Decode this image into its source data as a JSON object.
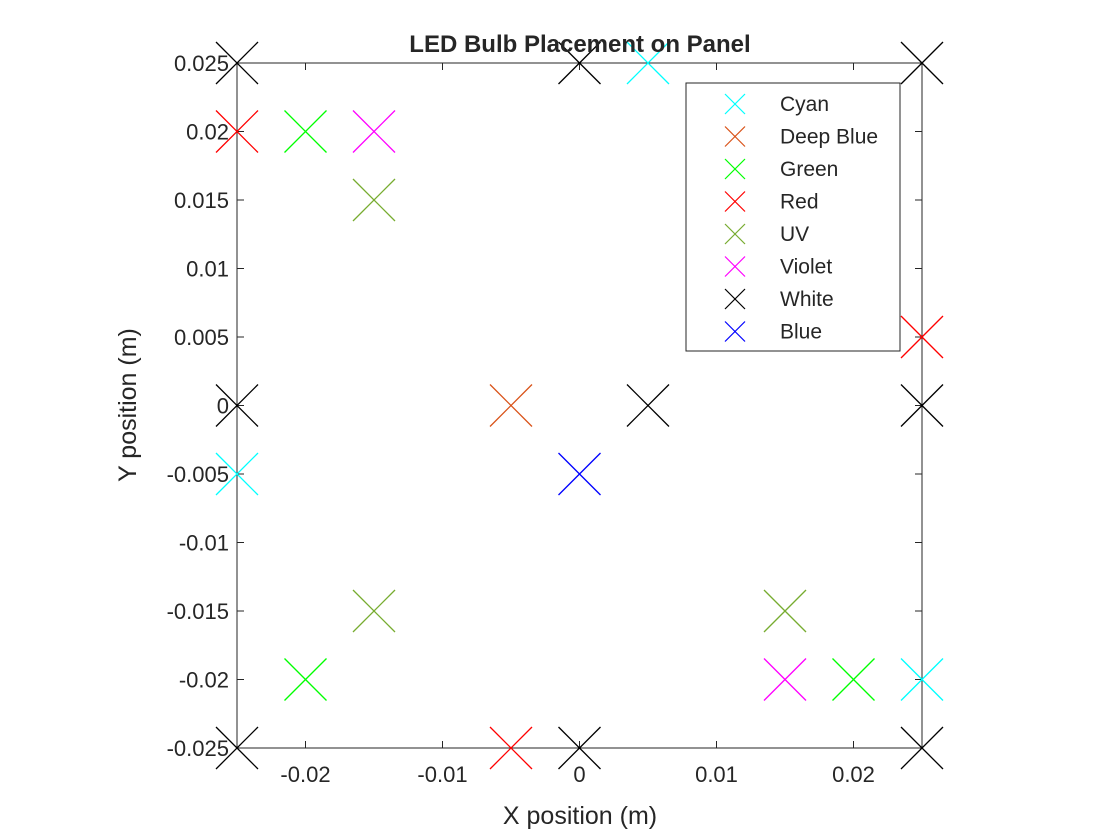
{
  "chart_data": {
    "type": "scatter",
    "title": "LED Bulb Placement on Panel",
    "xlabel": "X position (m)",
    "ylabel": "Y position (m)",
    "xlim": [
      -0.025,
      0.025
    ],
    "ylim": [
      -0.025,
      0.025
    ],
    "x_ticks": [
      "-0.02",
      "-0.01",
      "0",
      "0.01",
      "0.02"
    ],
    "y_ticks": [
      "-0.025",
      "-0.02",
      "-0.015",
      "-0.01",
      "-0.005",
      "0",
      "0.005",
      "0.01",
      "0.015",
      "0.02",
      "0.025"
    ],
    "grid": false,
    "legend_position": "top-right",
    "marker": "x",
    "series": [
      {
        "name": "Cyan",
        "color": "#00ffff",
        "points": [
          [
            0.005,
            0.025
          ],
          [
            -0.025,
            -0.005
          ],
          [
            0.025,
            -0.02
          ]
        ]
      },
      {
        "name": "Deep Blue",
        "color": "#d95319",
        "points": [
          [
            -0.005,
            0
          ]
        ]
      },
      {
        "name": "Green",
        "color": "#00ff00",
        "points": [
          [
            -0.02,
            0.02
          ],
          [
            -0.02,
            -0.02
          ],
          [
            0.02,
            -0.02
          ]
        ]
      },
      {
        "name": "Red",
        "color": "#ff0000",
        "points": [
          [
            -0.025,
            0.02
          ],
          [
            0.025,
            0.005
          ],
          [
            -0.005,
            -0.025
          ]
        ]
      },
      {
        "name": "UV",
        "color": "#77ac30",
        "points": [
          [
            -0.015,
            0.015
          ],
          [
            -0.015,
            -0.015
          ],
          [
            0.015,
            -0.015
          ]
        ]
      },
      {
        "name": "Violet",
        "color": "#ff00ff",
        "points": [
          [
            -0.015,
            0.02
          ],
          [
            0.015,
            -0.02
          ]
        ]
      },
      {
        "name": "White",
        "color": "#000000",
        "points": [
          [
            -0.025,
            0.025
          ],
          [
            0,
            0.025
          ],
          [
            0.025,
            0.025
          ],
          [
            -0.025,
            0
          ],
          [
            0.005,
            0
          ],
          [
            0.025,
            0
          ],
          [
            -0.025,
            -0.025
          ],
          [
            0,
            -0.025
          ],
          [
            0.025,
            -0.025
          ]
        ]
      },
      {
        "name": "Blue",
        "color": "#0000ff",
        "points": [
          [
            0,
            -0.005
          ]
        ]
      }
    ]
  }
}
